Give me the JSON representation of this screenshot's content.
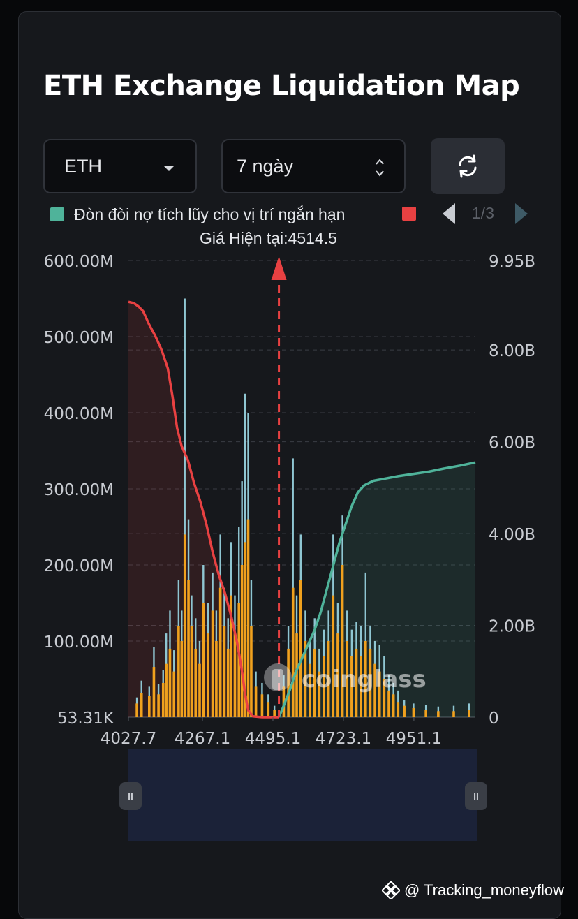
{
  "title": "ETH Exchange Liquidation Map",
  "controls": {
    "coin_value": "ETH",
    "range_value": "7 ngày",
    "refresh_icon": "refresh-icon"
  },
  "legend": {
    "items": [
      {
        "label": "Đòn đòi nợ tích lũy cho vị trí ngắn hạn",
        "color": "#4fb39a"
      },
      {
        "label": "",
        "color": "#e84142"
      }
    ],
    "pager": "1/3"
  },
  "current_price_label": "Giá Hiện tại:4514.5",
  "watermark_logo": "coinglass",
  "credit": "@ Tracking_moneyflow",
  "colors": {
    "short_cumulative": "#4fb39a",
    "long_cumulative": "#e84142",
    "bar_orange": "#f0a11e",
    "bar_blue": "#8fc6d2",
    "current_price_line": "#e84142"
  },
  "chart_data": {
    "type": "bar",
    "title": "ETH Exchange Liquidation Map",
    "current_price": 4514.5,
    "x_ticks": [
      "4027.7",
      "4267.1",
      "4495.1",
      "4723.1",
      "4951.1"
    ],
    "x_range": [
      4027.7,
      5150
    ],
    "y_left_ticks": [
      "600.00M",
      "500.00M",
      "400.00M",
      "300.00M",
      "200.00M",
      "100.00M",
      "53.31K"
    ],
    "y_left_range": [
      0,
      600
    ],
    "y_right_ticks": [
      "9.95B",
      "8.00B",
      "6.00B",
      "4.00B",
      "2.00B",
      "0"
    ],
    "y_right_range": [
      0,
      9.95
    ],
    "peaks_M": [
      {
        "x": 4055,
        "orange": 18,
        "blue": 26
      },
      {
        "x": 4070,
        "orange": 32,
        "blue": 48
      },
      {
        "x": 4095,
        "orange": 28,
        "blue": 40
      },
      {
        "x": 4110,
        "orange": 66,
        "blue": 92
      },
      {
        "x": 4125,
        "orange": 30,
        "blue": 44
      },
      {
        "x": 4140,
        "orange": 45,
        "blue": 62
      },
      {
        "x": 4150,
        "orange": 70,
        "blue": 110
      },
      {
        "x": 4162,
        "orange": 90,
        "blue": 140
      },
      {
        "x": 4175,
        "orange": 60,
        "blue": 88
      },
      {
        "x": 4190,
        "orange": 120,
        "blue": 180
      },
      {
        "x": 4200,
        "orange": 100,
        "blue": 140
      },
      {
        "x": 4210,
        "orange": 240,
        "blue": 550
      },
      {
        "x": 4222,
        "orange": 180,
        "blue": 260
      },
      {
        "x": 4232,
        "orange": 120,
        "blue": 160
      },
      {
        "x": 4245,
        "orange": 90,
        "blue": 130
      },
      {
        "x": 4258,
        "orange": 70,
        "blue": 100
      },
      {
        "x": 4270,
        "orange": 150,
        "blue": 200
      },
      {
        "x": 4285,
        "orange": 110,
        "blue": 150
      },
      {
        "x": 4300,
        "orange": 140,
        "blue": 190
      },
      {
        "x": 4312,
        "orange": 100,
        "blue": 140
      },
      {
        "x": 4325,
        "orange": 170,
        "blue": 240
      },
      {
        "x": 4338,
        "orange": 120,
        "blue": 170
      },
      {
        "x": 4350,
        "orange": 90,
        "blue": 130
      },
      {
        "x": 4360,
        "orange": 160,
        "blue": 230
      },
      {
        "x": 4372,
        "orange": 110,
        "blue": 160
      },
      {
        "x": 4385,
        "orange": 150,
        "blue": 250
      },
      {
        "x": 4395,
        "orange": 200,
        "blue": 310
      },
      {
        "x": 4405,
        "orange": 230,
        "blue": 425
      },
      {
        "x": 4415,
        "orange": 260,
        "blue": 400
      },
      {
        "x": 4425,
        "orange": 120,
        "blue": 180
      },
      {
        "x": 4440,
        "orange": 40,
        "blue": 60
      },
      {
        "x": 4460,
        "orange": 30,
        "blue": 45
      },
      {
        "x": 4480,
        "orange": 20,
        "blue": 30
      },
      {
        "x": 4500,
        "orange": 10,
        "blue": 15
      },
      {
        "x": 4530,
        "orange": 40,
        "blue": 55
      },
      {
        "x": 4545,
        "orange": 90,
        "blue": 120
      },
      {
        "x": 4560,
        "orange": 170,
        "blue": 340
      },
      {
        "x": 4572,
        "orange": 110,
        "blue": 160
      },
      {
        "x": 4585,
        "orange": 180,
        "blue": 240
      },
      {
        "x": 4600,
        "orange": 100,
        "blue": 140
      },
      {
        "x": 4615,
        "orange": 70,
        "blue": 100
      },
      {
        "x": 4630,
        "orange": 90,
        "blue": 130
      },
      {
        "x": 4645,
        "orange": 60,
        "blue": 90
      },
      {
        "x": 4660,
        "orange": 80,
        "blue": 115
      },
      {
        "x": 4675,
        "orange": 100,
        "blue": 140
      },
      {
        "x": 4690,
        "orange": 160,
        "blue": 240
      },
      {
        "x": 4705,
        "orange": 110,
        "blue": 150
      },
      {
        "x": 4720,
        "orange": 200,
        "blue": 265
      },
      {
        "x": 4735,
        "orange": 100,
        "blue": 140
      },
      {
        "x": 4750,
        "orange": 80,
        "blue": 115
      },
      {
        "x": 4765,
        "orange": 90,
        "blue": 125
      },
      {
        "x": 4780,
        "orange": 80,
        "blue": 120
      },
      {
        "x": 4795,
        "orange": 100,
        "blue": 190
      },
      {
        "x": 4810,
        "orange": 90,
        "blue": 120
      },
      {
        "x": 4825,
        "orange": 70,
        "blue": 100
      },
      {
        "x": 4840,
        "orange": 60,
        "blue": 95
      },
      {
        "x": 4855,
        "orange": 50,
        "blue": 80
      },
      {
        "x": 4870,
        "orange": 35,
        "blue": 55
      },
      {
        "x": 4885,
        "orange": 30,
        "blue": 45
      },
      {
        "x": 4900,
        "orange": 20,
        "blue": 35
      },
      {
        "x": 4920,
        "orange": 15,
        "blue": 22
      },
      {
        "x": 4950,
        "orange": 12,
        "blue": 18
      },
      {
        "x": 4990,
        "orange": 10,
        "blue": 16
      },
      {
        "x": 5030,
        "orange": 8,
        "blue": 14
      },
      {
        "x": 5080,
        "orange": 8,
        "blue": 15
      },
      {
        "x": 5130,
        "orange": 10,
        "blue": 18
      }
    ],
    "series": [
      {
        "name": "",
        "color": "#e84142",
        "axis": "right",
        "points": [
          [
            4027.7,
            9.05
          ],
          [
            4045,
            9.02
          ],
          [
            4060,
            8.95
          ],
          [
            4075,
            8.85
          ],
          [
            4095,
            8.55
          ],
          [
            4115,
            8.3
          ],
          [
            4135,
            8.0
          ],
          [
            4155,
            7.6
          ],
          [
            4170,
            7.0
          ],
          [
            4185,
            6.3
          ],
          [
            4200,
            5.9
          ],
          [
            4220,
            5.6
          ],
          [
            4240,
            5.1
          ],
          [
            4260,
            4.7
          ],
          [
            4280,
            4.2
          ],
          [
            4300,
            3.6
          ],
          [
            4320,
            3.1
          ],
          [
            4340,
            2.7
          ],
          [
            4360,
            2.2
          ],
          [
            4380,
            1.6
          ],
          [
            4395,
            1.0
          ],
          [
            4405,
            0.5
          ],
          [
            4415,
            0.15
          ],
          [
            4430,
            0.02
          ],
          [
            4460,
            0.0
          ],
          [
            4514.5,
            0.0
          ]
        ]
      },
      {
        "name": "Đòn đòi nợ tích lũy cho vị trí ngắn hạn",
        "color": "#4fb39a",
        "axis": "right",
        "points": [
          [
            4514.5,
            0.0
          ],
          [
            4530,
            0.25
          ],
          [
            4550,
            0.6
          ],
          [
            4570,
            1.0
          ],
          [
            4590,
            1.3
          ],
          [
            4610,
            1.6
          ],
          [
            4630,
            1.9
          ],
          [
            4650,
            2.3
          ],
          [
            4670,
            2.8
          ],
          [
            4690,
            3.3
          ],
          [
            4710,
            3.8
          ],
          [
            4730,
            4.2
          ],
          [
            4750,
            4.6
          ],
          [
            4770,
            4.9
          ],
          [
            4790,
            5.05
          ],
          [
            4820,
            5.15
          ],
          [
            4860,
            5.2
          ],
          [
            4900,
            5.25
          ],
          [
            4950,
            5.3
          ],
          [
            5000,
            5.35
          ],
          [
            5050,
            5.42
          ],
          [
            5100,
            5.48
          ],
          [
            5150,
            5.55
          ]
        ]
      }
    ]
  }
}
